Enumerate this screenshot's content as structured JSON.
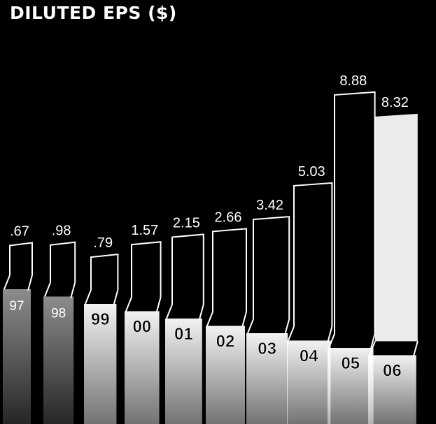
{
  "chart_data": {
    "type": "bar",
    "title": "DILUTED EPS ($)",
    "categories": [
      "97",
      "98",
      "99",
      "00",
      "01",
      "02",
      "03",
      "04",
      "05",
      "06"
    ],
    "values": [
      0.67,
      0.98,
      0.79,
      1.57,
      2.15,
      2.66,
      3.42,
      5.03,
      8.88,
      8.32
    ],
    "value_labels": [
      ".67",
      ".98",
      ".79",
      "1.57",
      "2.15",
      "2.66",
      "3.42",
      "5.03",
      "8.88",
      "8.32"
    ],
    "highlighted_category": "06",
    "xlabel": "",
    "ylabel": "",
    "grid": false,
    "legend": "none"
  },
  "colors": {
    "background": "#000000",
    "bar_outline": "#ffffff",
    "highlight_fill": "#ffffff",
    "text": "#ffffff"
  }
}
